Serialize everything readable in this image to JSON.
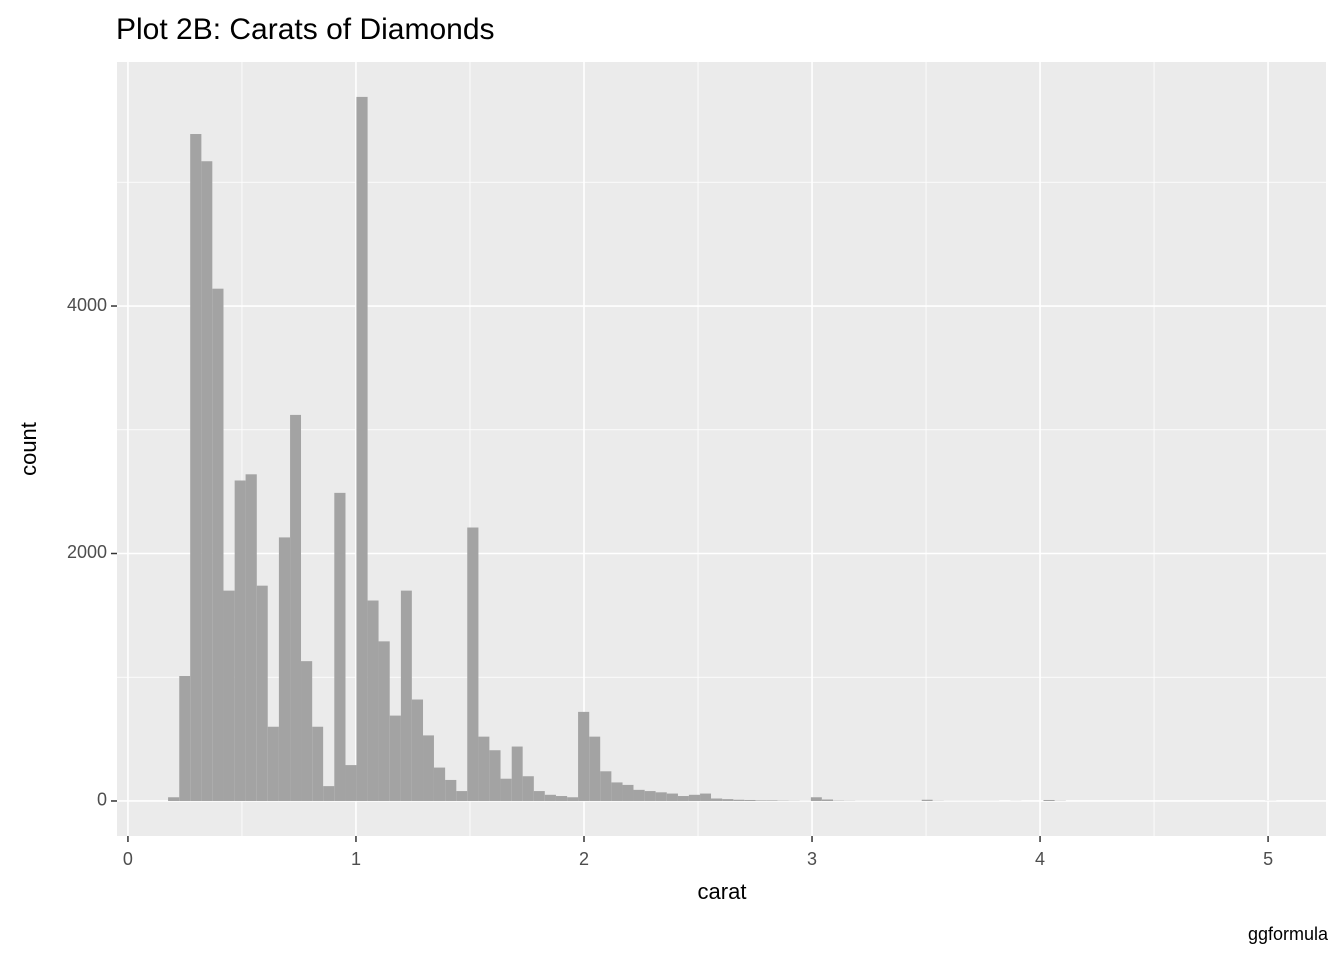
{
  "chart_data": {
    "type": "histogram",
    "title": "Plot 2B: Carats of Diamonds",
    "x_label": "carat",
    "y_label": "count",
    "caption": "ggformula",
    "bins": [
      0.176,
      0.225,
      0.273,
      0.322,
      0.37,
      0.419,
      0.468,
      0.516,
      0.565,
      0.613,
      0.662,
      0.711,
      0.759,
      0.808,
      0.856,
      0.905,
      0.954,
      1.002,
      1.051,
      1.099,
      1.148,
      1.197,
      1.245,
      1.294,
      1.342,
      1.391,
      1.44,
      1.488,
      1.537,
      1.585,
      1.634,
      1.683,
      1.731,
      1.78,
      1.828,
      1.877,
      1.926,
      1.974,
      2.023,
      2.071,
      2.12,
      2.169,
      2.217,
      2.266,
      2.314,
      2.363,
      2.412,
      2.46,
      2.509,
      2.557,
      2.606,
      2.655,
      2.703,
      2.752,
      2.8,
      2.849,
      2.898,
      2.946,
      2.995,
      3.043,
      3.092,
      3.141,
      3.189,
      3.238,
      3.286,
      3.335,
      3.384,
      3.432,
      3.481,
      3.529,
      3.578,
      3.627,
      3.675,
      3.724,
      3.772,
      3.821,
      3.87,
      3.918,
      3.967,
      4.015,
      4.064,
      4.113,
      4.161,
      4.21,
      4.258,
      4.307,
      4.356,
      4.404,
      4.453,
      4.501,
      4.55,
      4.599,
      4.647,
      4.696,
      4.744,
      4.793,
      4.842,
      4.89,
      4.939,
      4.987,
      5.036
    ],
    "values": [
      30,
      1010,
      5390,
      5170,
      4140,
      1700,
      2590,
      2640,
      1740,
      600,
      2130,
      3120,
      1130,
      600,
      120,
      2490,
      290,
      5690,
      1620,
      1290,
      690,
      1700,
      820,
      530,
      270,
      170,
      80,
      2210,
      520,
      410,
      180,
      440,
      200,
      80,
      50,
      40,
      30,
      720,
      520,
      240,
      150,
      130,
      90,
      80,
      70,
      60,
      40,
      50,
      60,
      20,
      15,
      10,
      8,
      5,
      5,
      3,
      2,
      1,
      30,
      12,
      3,
      2,
      1,
      1,
      1,
      1,
      1,
      1,
      10,
      2,
      1,
      1,
      1,
      1,
      1,
      0,
      1,
      0,
      0,
      8,
      2,
      0,
      0,
      0,
      0,
      0,
      0,
      0,
      0,
      0,
      0,
      0,
      0,
      0,
      0,
      0,
      0,
      0,
      0,
      1
    ],
    "color": "#a3a3a3",
    "xlim": [
      -0.048,
      5.254
    ],
    "ylim": [
      -283,
      5972
    ],
    "xticks": [
      0,
      1,
      2,
      3,
      4,
      5
    ],
    "yticks": [
      0,
      2000,
      4000
    ],
    "grid": true,
    "minor_grid": true
  }
}
